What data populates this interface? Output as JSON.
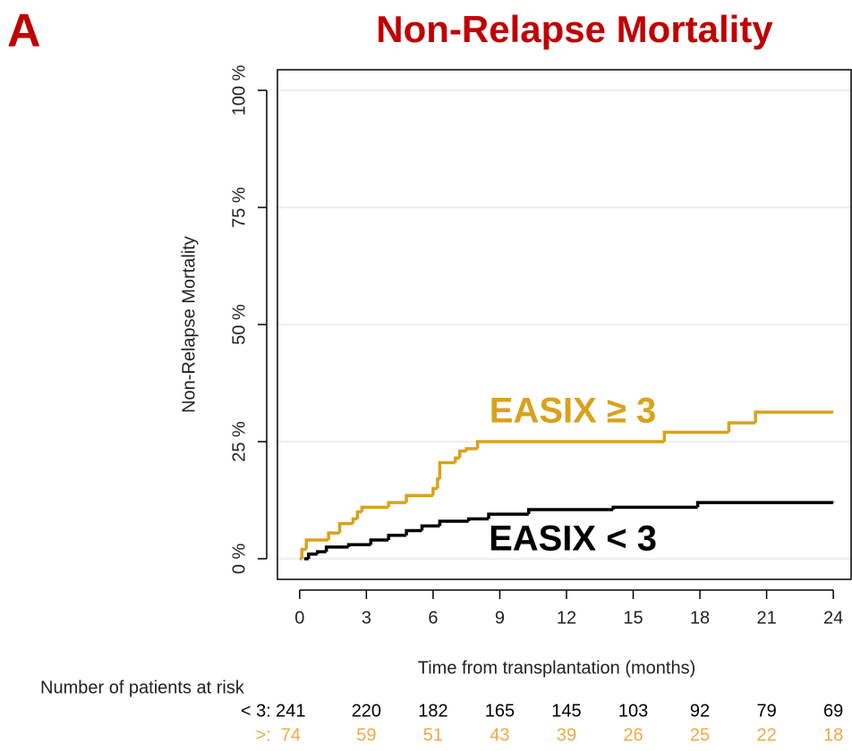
{
  "chart_data": {
    "type": "step",
    "panel_label": "A",
    "title": "Non-Relapse Mortality",
    "x_label": "Time from transplantation (months)",
    "y_label": "Non-Relapse Mortality",
    "xlim": [
      -1,
      24.8
    ],
    "ylim": [
      -4.4,
      104.4
    ],
    "xticks": [
      0,
      3,
      6,
      9,
      12,
      15,
      18,
      21,
      24
    ],
    "yticks": [
      {
        "value": 0,
        "label": "0 %"
      },
      {
        "value": 25,
        "label": "25 %"
      },
      {
        "value": 50,
        "label": "50 %"
      },
      {
        "value": 75,
        "label": "75 %"
      },
      {
        "value": 100,
        "label": "100 %"
      }
    ],
    "grid": true,
    "series": [
      {
        "name": "EASIX ≥ 3",
        "color": "#d9a21b",
        "x": [
          0,
          0.1,
          0.3,
          1.3,
          1.8,
          2.4,
          2.6,
          2.8,
          4.0,
          4.8,
          6.0,
          6.2,
          6.3,
          7.0,
          7.2,
          7.5,
          8.0,
          16.4,
          19.3,
          20.5,
          24
        ],
        "values": [
          0,
          2,
          4,
          5.5,
          7.5,
          8.5,
          10,
          11,
          12,
          13.5,
          15,
          17,
          20.5,
          21.5,
          23,
          23.5,
          25,
          27,
          29,
          31.3,
          31.3
        ]
      },
      {
        "name": "EASIX < 3",
        "color": "#000000",
        "x": [
          0.2,
          0.4,
          0.8,
          1.2,
          2.2,
          3.2,
          4.0,
          4.8,
          5.5,
          6.3,
          7.6,
          8.5,
          10.3,
          14.1,
          17.9,
          24
        ],
        "values": [
          0,
          1,
          1.5,
          2.5,
          3,
          4,
          5,
          6,
          7,
          8,
          8.5,
          9.5,
          10.5,
          11,
          12,
          12.1
        ]
      }
    ],
    "risk_table": {
      "title": "Number of patients at risk",
      "rows": [
        {
          "label": "< 3:",
          "color": "#000000",
          "values": [
            241,
            220,
            182,
            165,
            145,
            103,
            92,
            79,
            69
          ]
        },
        {
          "label": ">:",
          "color": "#f0a848",
          "values": [
            74,
            59,
            51,
            43,
            39,
            26,
            25,
            22,
            18
          ]
        }
      ]
    }
  }
}
